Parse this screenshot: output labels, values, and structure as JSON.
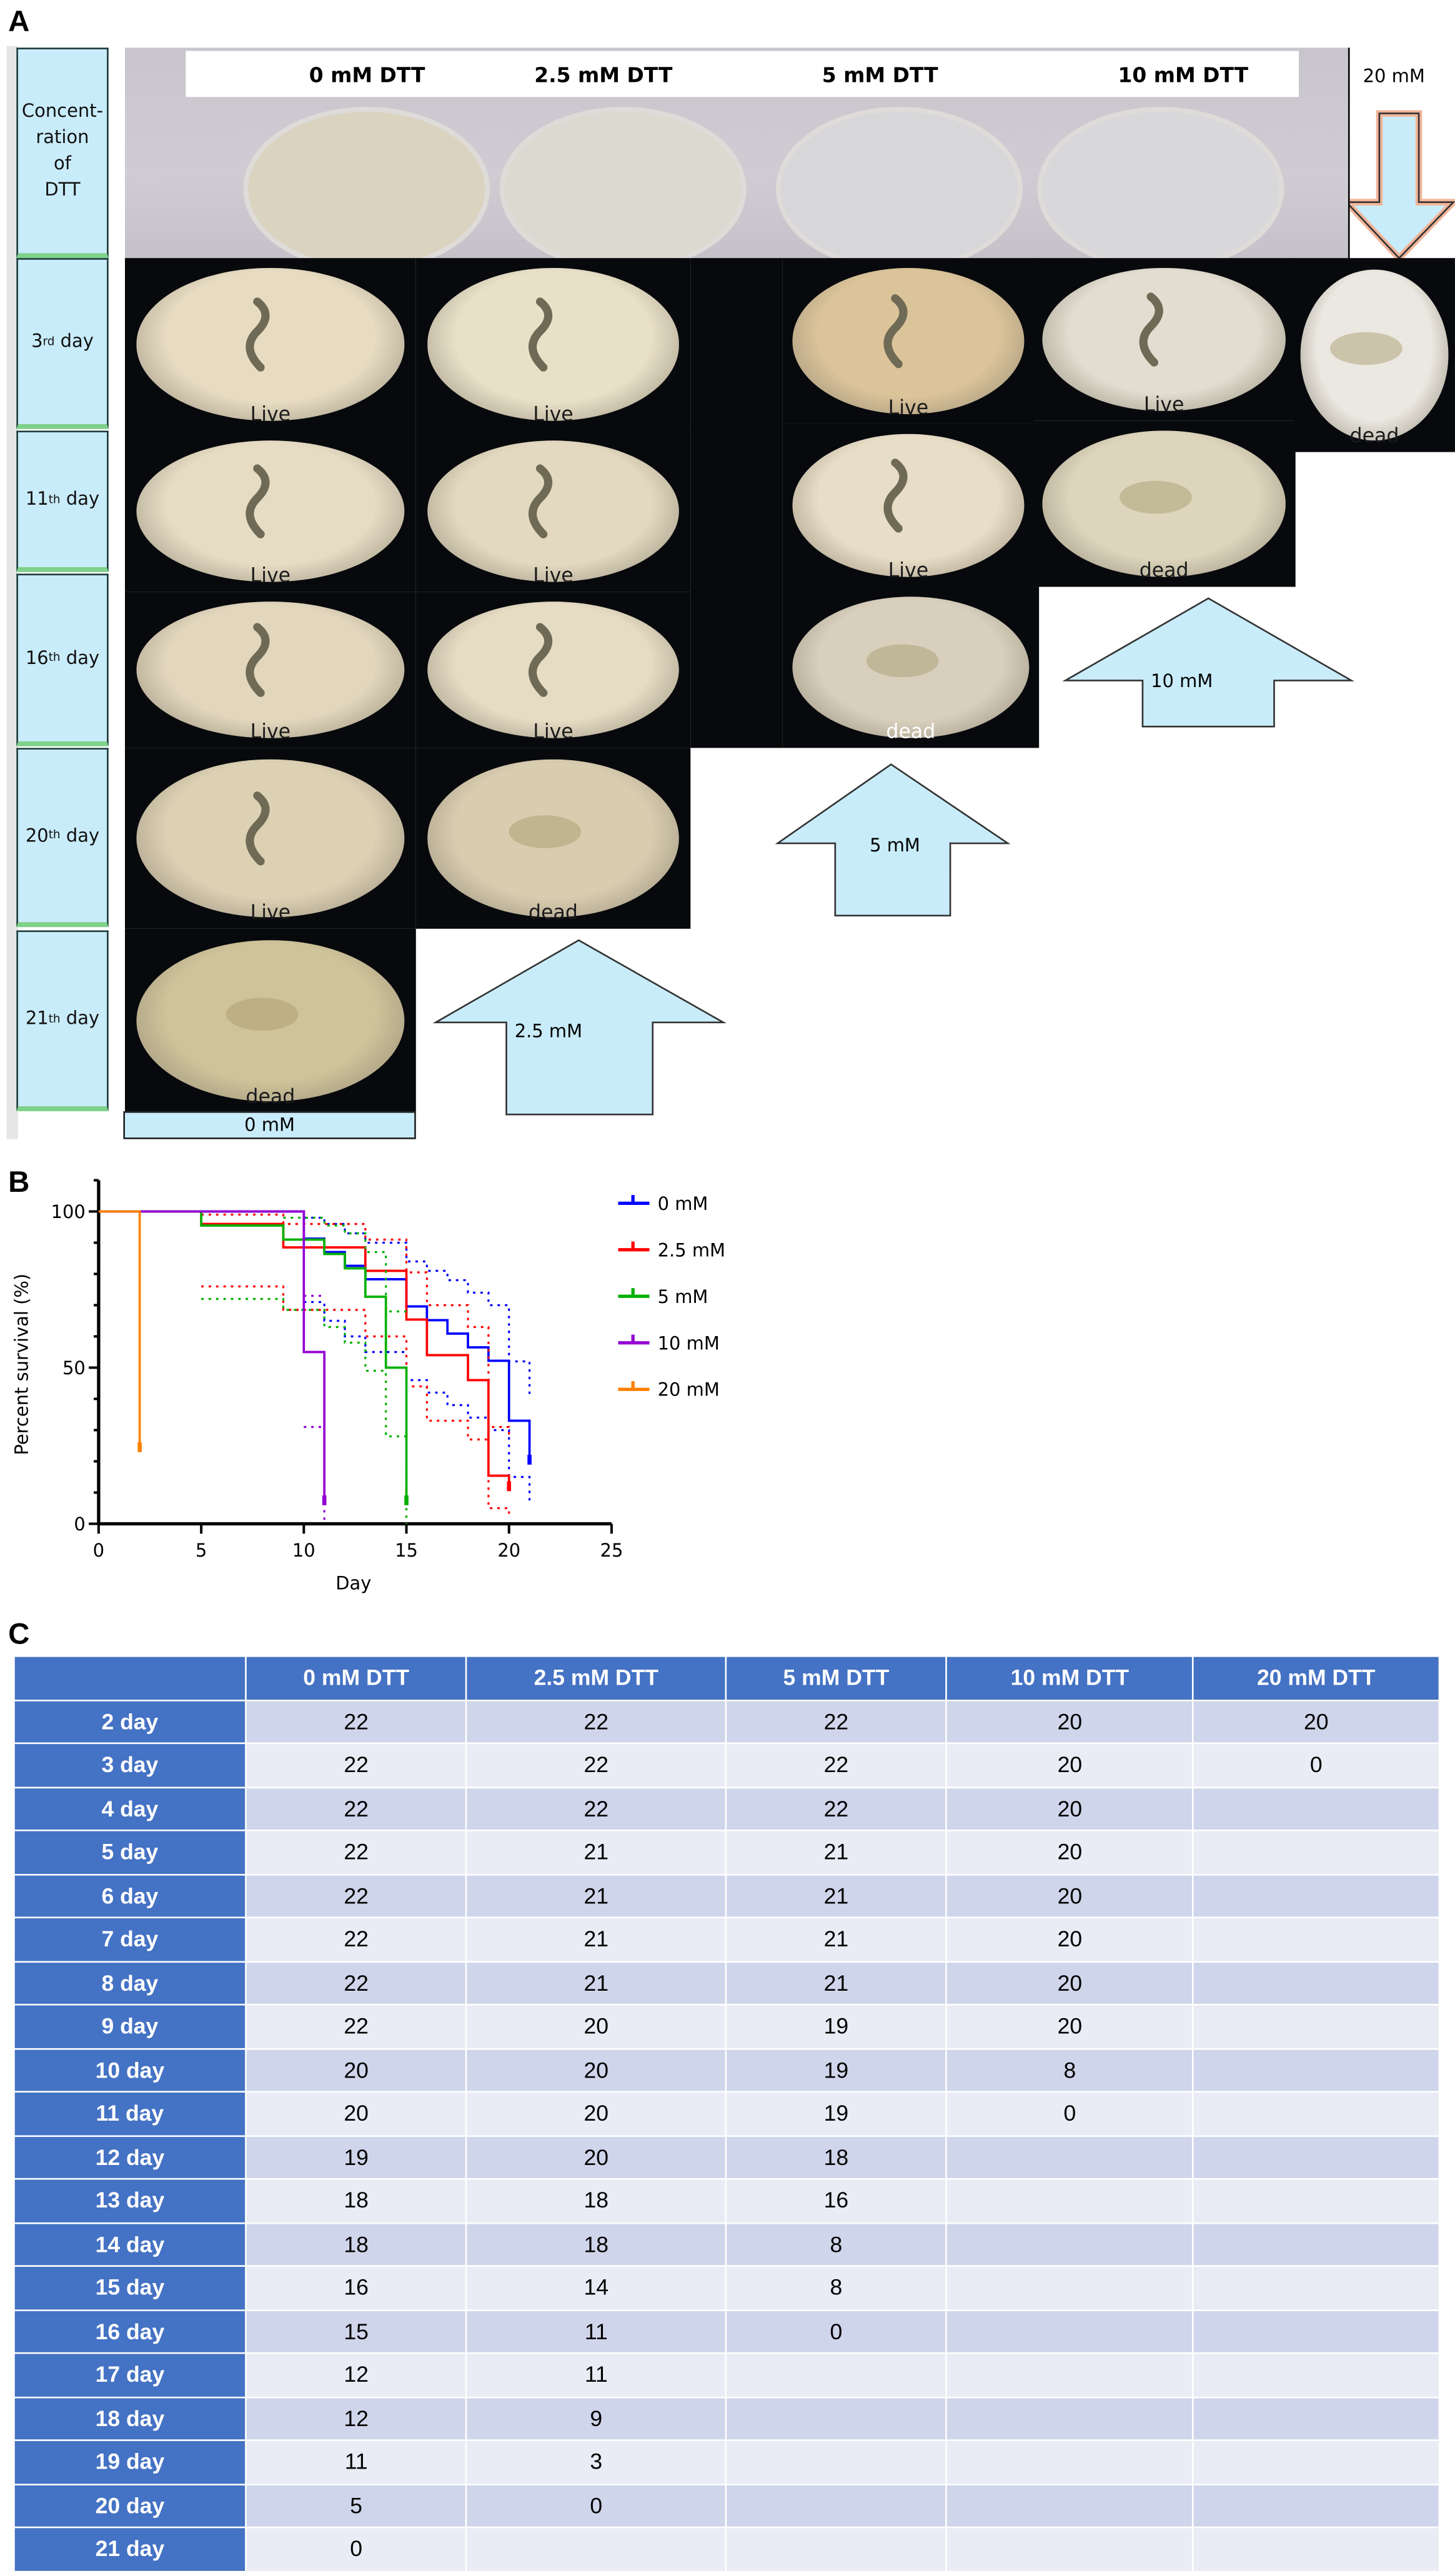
{
  "panel_a": {
    "letter": "A",
    "row_labels": [
      {
        "main": "Concent-\nration\nof\nDTT"
      },
      {
        "num": "3",
        "sup": "rd",
        "suffix": " day"
      },
      {
        "num": "11",
        "sup": "th",
        "suffix": " day"
      },
      {
        "num": "16",
        "sup": "th",
        "suffix": " day"
      },
      {
        "num": "20",
        "sup": "th",
        "suffix": " day"
      },
      {
        "num": "21",
        "sup": "th",
        "suffix": " day"
      }
    ],
    "plate_titles": [
      "0 mM DTT",
      "2.5 mM DTT",
      "5 mM DTT",
      "10 mM DTT"
    ],
    "arrow_labels": {
      "mm20": "20 mM",
      "mm10": "10 mM",
      "mm5": "5 mM",
      "mm2_5": "2.5 mM",
      "mm0": "0 mM"
    },
    "photos": [
      {
        "col": "0 mM",
        "day": "3rd",
        "status": "Live"
      },
      {
        "col": "0 mM",
        "day": "11th",
        "status": "Live"
      },
      {
        "col": "0 mM",
        "day": "16th",
        "status": "Live"
      },
      {
        "col": "0 mM",
        "day": "20th",
        "status": "Live"
      },
      {
        "col": "0 mM",
        "day": "21th",
        "status": "dead"
      },
      {
        "col": "2.5 mM",
        "day": "3rd",
        "status": "Live"
      },
      {
        "col": "2.5 mM",
        "day": "11th",
        "status": "Live"
      },
      {
        "col": "2.5 mM",
        "day": "16th",
        "status": "Live"
      },
      {
        "col": "2.5 mM",
        "day": "20th",
        "status": "dead"
      },
      {
        "col": "5 mM",
        "day": "3rd",
        "status": "Live"
      },
      {
        "col": "5 mM",
        "day": "11th",
        "status": "Live"
      },
      {
        "col": "5 mM",
        "day": "16th",
        "status": "dead"
      },
      {
        "col": "10 mM",
        "day": "3rd",
        "status": "Live"
      },
      {
        "col": "10 mM",
        "day": "11th",
        "status": "dead"
      },
      {
        "col": "20 mM",
        "day": "3rd",
        "status": "dead"
      }
    ]
  },
  "panel_b": {
    "letter": "B"
  },
  "chart_data": {
    "type": "line",
    "subtype": "kaplan-meier step",
    "xlabel": "Day",
    "ylabel": "Percent survival (%)",
    "xlim": [
      0,
      25
    ],
    "ylim": [
      0,
      100
    ],
    "xticks": [
      0,
      5,
      10,
      15,
      20,
      25
    ],
    "yticks": [
      0,
      50,
      100
    ],
    "legend_position": "right",
    "series": [
      {
        "name": "0 mM",
        "color": "#0000ff",
        "points": [
          [
            0,
            100
          ],
          [
            10,
            91.3
          ],
          [
            11,
            87
          ],
          [
            12,
            82.6
          ],
          [
            13,
            78.3
          ],
          [
            15,
            69.6
          ],
          [
            16,
            65.2
          ],
          [
            17,
            60.9
          ],
          [
            18,
            56.5
          ],
          [
            19,
            52.2
          ],
          [
            20,
            33
          ],
          [
            21,
            20
          ]
        ],
        "ci_upper": [
          [
            10,
            98
          ],
          [
            11,
            96
          ],
          [
            12,
            93
          ],
          [
            13,
            90
          ],
          [
            15,
            84
          ],
          [
            16,
            81
          ],
          [
            17,
            78
          ],
          [
            18,
            74
          ],
          [
            19,
            70
          ],
          [
            20,
            52
          ],
          [
            21,
            40
          ]
        ],
        "ci_lower": [
          [
            10,
            71
          ],
          [
            11,
            65
          ],
          [
            12,
            60
          ],
          [
            13,
            55
          ],
          [
            15,
            46
          ],
          [
            16,
            42
          ],
          [
            17,
            38
          ],
          [
            18,
            34
          ],
          [
            19,
            30
          ],
          [
            20,
            15
          ],
          [
            21,
            7
          ]
        ]
      },
      {
        "name": "2.5 mM",
        "color": "#ff0000",
        "points": [
          [
            0,
            100
          ],
          [
            5,
            96
          ],
          [
            9,
            88.5
          ],
          [
            13,
            81
          ],
          [
            15,
            65.4
          ],
          [
            16,
            54
          ],
          [
            18,
            46
          ],
          [
            19,
            15.4
          ],
          [
            20,
            11.5
          ]
        ],
        "ci_upper": [
          [
            5,
            99
          ],
          [
            9,
            96
          ],
          [
            13,
            91
          ],
          [
            15,
            80.5
          ],
          [
            16,
            70
          ],
          [
            18,
            63
          ],
          [
            19,
            31
          ],
          [
            20,
            27
          ]
        ],
        "ci_lower": [
          [
            5,
            76
          ],
          [
            9,
            68.5
          ],
          [
            13,
            60
          ],
          [
            15,
            44
          ],
          [
            16,
            33
          ],
          [
            18,
            27
          ],
          [
            19,
            5
          ],
          [
            20,
            3
          ]
        ]
      },
      {
        "name": "5 mM",
        "color": "#00b000",
        "points": [
          [
            0,
            100
          ],
          [
            5,
            95.5
          ],
          [
            9,
            91
          ],
          [
            11,
            86.4
          ],
          [
            12,
            81.8
          ],
          [
            13,
            72.7
          ],
          [
            14,
            50
          ],
          [
            15,
            7
          ]
        ],
        "ci_upper": [
          [
            9,
            98
          ],
          [
            11,
            95.5
          ],
          [
            12,
            93
          ],
          [
            13,
            87
          ],
          [
            14,
            68
          ],
          [
            15,
            68
          ]
        ],
        "ci_lower": [
          [
            5,
            72
          ],
          [
            9,
            68.5
          ],
          [
            11,
            63
          ],
          [
            12,
            58
          ],
          [
            13,
            49
          ],
          [
            14,
            28
          ],
          [
            15,
            0
          ]
        ]
      },
      {
        "name": "10 mM",
        "color": "#9400d3",
        "points": [
          [
            0,
            100
          ],
          [
            10,
            55
          ],
          [
            11,
            7
          ]
        ],
        "ci_upper": [
          [
            10,
            73
          ],
          [
            11,
            73
          ]
        ],
        "ci_lower": [
          [
            10,
            31
          ],
          [
            11,
            0
          ]
        ]
      },
      {
        "name": "20 mM",
        "color": "#ff8000",
        "points": [
          [
            0,
            100
          ],
          [
            2,
            24
          ]
        ],
        "ci_upper": [],
        "ci_lower": []
      }
    ]
  },
  "panel_c": {
    "letter": "C",
    "columns": [
      "",
      "0 mM DTT",
      "2.5 mM DTT",
      "5 mM DTT",
      "10 mM DTT",
      "20 mM DTT"
    ],
    "rows": [
      {
        "day": "2 day",
        "values": [
          "22",
          "22",
          "22",
          "20",
          "20"
        ]
      },
      {
        "day": "3 day",
        "values": [
          "22",
          "22",
          "22",
          "20",
          "0"
        ]
      },
      {
        "day": "4 day",
        "values": [
          "22",
          "22",
          "22",
          "20",
          ""
        ]
      },
      {
        "day": "5 day",
        "values": [
          "22",
          "21",
          "21",
          "20",
          ""
        ]
      },
      {
        "day": "6 day",
        "values": [
          "22",
          "21",
          "21",
          "20",
          ""
        ]
      },
      {
        "day": "7 day",
        "values": [
          "22",
          "21",
          "21",
          "20",
          ""
        ]
      },
      {
        "day": "8 day",
        "values": [
          "22",
          "21",
          "21",
          "20",
          ""
        ]
      },
      {
        "day": "9 day",
        "values": [
          "22",
          "20",
          "19",
          "20",
          ""
        ]
      },
      {
        "day": "10 day",
        "values": [
          "20",
          "20",
          "19",
          "8",
          ""
        ]
      },
      {
        "day": "11 day",
        "values": [
          "20",
          "20",
          "19",
          "0",
          ""
        ]
      },
      {
        "day": "12 day",
        "values": [
          "19",
          "20",
          "18",
          "",
          ""
        ]
      },
      {
        "day": "13 day",
        "values": [
          "18",
          "18",
          "16",
          "",
          ""
        ]
      },
      {
        "day": "14 day",
        "values": [
          "18",
          "18",
          "8",
          "",
          ""
        ]
      },
      {
        "day": "15 day",
        "values": [
          "16",
          "14",
          "8",
          "",
          ""
        ]
      },
      {
        "day": "16 day",
        "values": [
          "15",
          "11",
          "0",
          "",
          ""
        ]
      },
      {
        "day": "17 day",
        "values": [
          "12",
          "11",
          "",
          "",
          ""
        ]
      },
      {
        "day": "18 day",
        "values": [
          "12",
          "9",
          "",
          "",
          ""
        ]
      },
      {
        "day": "19 day",
        "values": [
          "11",
          "3",
          "",
          "",
          ""
        ]
      },
      {
        "day": "20 day",
        "values": [
          "5",
          "0",
          "",
          "",
          ""
        ]
      },
      {
        "day": "21 day",
        "values": [
          "0",
          "",
          "",
          "",
          ""
        ]
      }
    ]
  }
}
